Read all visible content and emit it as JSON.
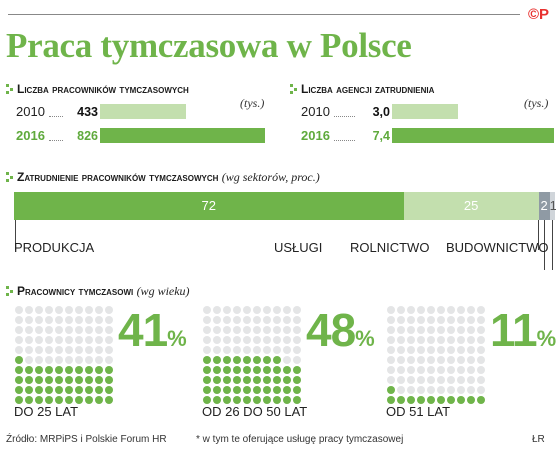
{
  "header": {
    "title": "Praca tymczasowa w Polsce",
    "copyright": "©P"
  },
  "colors": {
    "green": "#6fb44a",
    "green_light": "#c3dfae",
    "gray": "#8f9aa4",
    "gray_light": "#d0d5da",
    "dot_empty": "#e4e5e6",
    "copyright_red": "#e8312f"
  },
  "workers_section": {
    "title": "Liczba pracowników tymczasowych",
    "unit": "(tys.)"
  },
  "agencies_section": {
    "title": "Liczba agencji zatrudnienia",
    "unit": "(tys.)"
  },
  "sector_section": {
    "title": "Zatrudnienie pracowników tymczasowych",
    "note": "(wg sektorów, proc.)"
  },
  "age_section": {
    "title": "Pracownicy tymczasowi",
    "note": "(wg wieku)"
  },
  "chart_data": [
    {
      "type": "bar",
      "orientation": "horizontal",
      "name": "workers",
      "categories": [
        "2010",
        "2016"
      ],
      "values": [
        433,
        826
      ],
      "value_labels": [
        "433",
        "826"
      ],
      "highlight": "2016"
    },
    {
      "type": "bar",
      "orientation": "horizontal",
      "name": "agencies",
      "categories": [
        "2010",
        "2016"
      ],
      "values": [
        3.0,
        7.4
      ],
      "value_labels": [
        "3,0",
        "7,4"
      ],
      "highlight": "2016"
    },
    {
      "type": "bar",
      "orientation": "horizontal",
      "stacked": true,
      "name": "sectors",
      "categories": [
        "PRODUKCJA",
        "USŁUGI",
        "ROLNICTWO",
        "BUDOWNICTWO"
      ],
      "values": [
        72,
        25,
        2,
        1
      ],
      "value_labels": [
        "72",
        "25",
        "2",
        "1"
      ]
    },
    {
      "type": "waffle",
      "name": "age",
      "categories": [
        "DO 25 LAT",
        "OD 26 DO 50 LAT",
        "OD 51 LAT"
      ],
      "values": [
        41,
        48,
        11
      ],
      "value_labels": [
        "41",
        "48",
        "11"
      ],
      "unit": "%"
    }
  ],
  "footer": {
    "source": "Źródło: MRPiPS i Polskie Forum HR",
    "footnote": "* w tym te oferujące usługę pracy tymczasowej",
    "author": "ŁR"
  }
}
